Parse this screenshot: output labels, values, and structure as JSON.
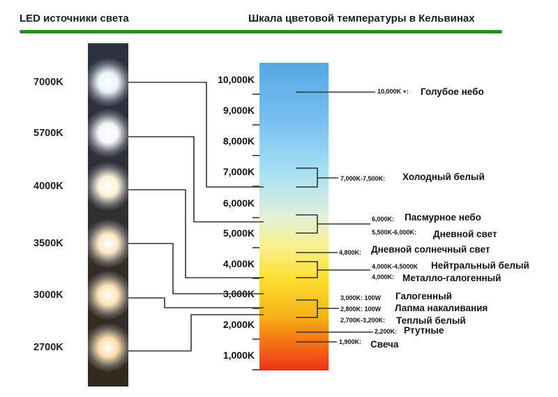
{
  "header": {
    "left_title": "LED источники света",
    "right_title": "Шкала цветовой температуры в Кельвинах",
    "divider_color": "#2a8a2a"
  },
  "led_labels": [
    "7000K",
    "5700K",
    "4000K",
    "3500K",
    "3000K",
    "2700K"
  ],
  "led_colors": [
    "#eaf4ff",
    "#f4f6f8",
    "#fdf2d8",
    "#fde8c4",
    "#fde3b4",
    "#fddcaa"
  ],
  "scale_ticks": [
    "10,000K",
    "9,000K",
    "8,000K",
    "7,000K",
    "6,000K",
    "5,000K",
    "4,000K",
    "3,000K",
    "2,000K",
    "1,000K"
  ],
  "scale_gradient_colors": [
    "#56a8e2",
    "#a8e0f4",
    "#f8f08a",
    "#fce030",
    "#f47214",
    "#ee3218"
  ],
  "annotations": [
    {
      "range": "10,000K +:",
      "name": "Голубое небо"
    },
    {
      "range": "7,000K-7,500K:",
      "name": "Холодный белый"
    },
    {
      "range": "6,000K:",
      "name": "Пасмурное небо"
    },
    {
      "range": "5,500K-6,000K:",
      "name": "Дневной свет"
    },
    {
      "range": "4,800K:",
      "name": "Дневной солнечный свет"
    },
    {
      "range": "4,000K-4,5000K",
      "name": "Нейтральный белый"
    },
    {
      "range": "4,000K:",
      "name": "Металло-галогенный"
    },
    {
      "range": "3,000K: 100W",
      "name": "Галогенный"
    },
    {
      "range": "2,800K: 100W",
      "name": "Лапма накаливания"
    },
    {
      "range": "2,700K-3,200K:",
      "name": "Теплый белый"
    },
    {
      "range": "2,200K:",
      "name": "Ртутные"
    },
    {
      "range": "1,900K:",
      "name": "Свеча"
    }
  ]
}
